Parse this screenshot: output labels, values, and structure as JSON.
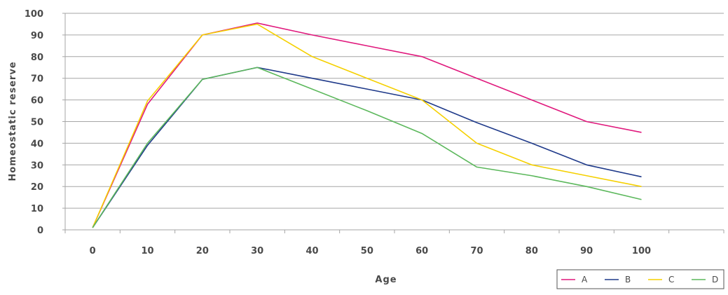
{
  "chart_data": {
    "type": "line",
    "title": "",
    "xlabel": "Age",
    "ylabel": "Homeostatic reserve",
    "x": [
      0,
      10,
      20,
      30,
      40,
      50,
      60,
      70,
      80,
      90,
      100
    ],
    "xlim": [
      -5,
      115
    ],
    "ylim": [
      0,
      100
    ],
    "yticks": [
      0,
      10,
      20,
      30,
      40,
      50,
      60,
      70,
      80,
      90,
      100
    ],
    "grid": "horizontal",
    "legend_position": "bottom-right",
    "series": [
      {
        "name": "A",
        "color": "#e0197d",
        "values": [
          1,
          58,
          90,
          95.5,
          90,
          85,
          80,
          70,
          60,
          50,
          45
        ]
      },
      {
        "name": "B",
        "color": "#1f3a8a",
        "values": [
          1,
          39,
          69.5,
          75,
          70,
          65,
          60,
          49.5,
          40,
          30,
          24.5
        ]
      },
      {
        "name": "C",
        "color": "#f5d000",
        "values": [
          1,
          59.5,
          90,
          95,
          80,
          70,
          60,
          40,
          30,
          25,
          20
        ]
      },
      {
        "name": "D",
        "color": "#5cb85c",
        "values": [
          1,
          40,
          69.5,
          75,
          65,
          55,
          44.5,
          29,
          25,
          20,
          14
        ]
      }
    ]
  }
}
